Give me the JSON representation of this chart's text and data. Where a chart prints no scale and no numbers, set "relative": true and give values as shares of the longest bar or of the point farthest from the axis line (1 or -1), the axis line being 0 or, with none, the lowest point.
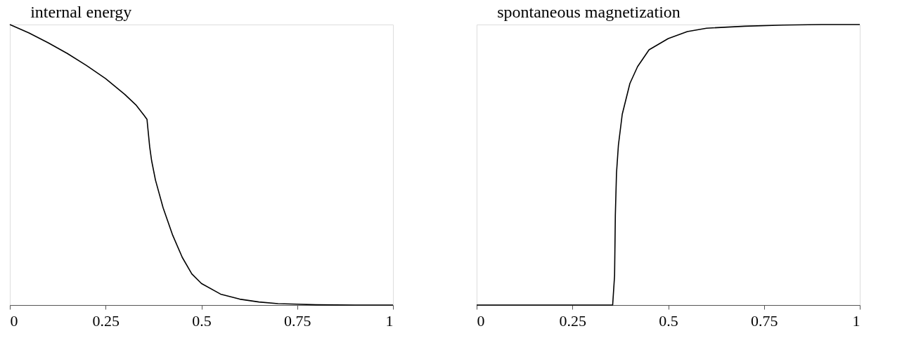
{
  "chart_data": [
    {
      "type": "line",
      "title": "internal energy",
      "relative": true,
      "tick_labels": "x",
      "xlim": [
        0,
        1
      ],
      "xticks": [
        0,
        0.25,
        0.5,
        0.75,
        1
      ],
      "x": [
        0,
        0.05,
        0.1,
        0.15,
        0.2,
        0.25,
        0.3,
        0.33,
        0.35,
        0.358,
        0.36,
        0.365,
        0.37,
        0.38,
        0.4,
        0.425,
        0.45,
        0.475,
        0.5,
        0.55,
        0.6,
        0.65,
        0.7,
        0.75,
        0.8,
        0.9,
        1
      ],
      "series": [
        {
          "color": "#000000",
          "values": [
            1,
            0.97,
            0.935,
            0.897,
            0.854,
            0.807,
            0.751,
            0.712,
            0.677,
            0.662,
            0.633,
            0.564,
            0.515,
            0.446,
            0.347,
            0.249,
            0.17,
            0.111,
            0.077,
            0.039,
            0.021,
            0.011,
            0.005,
            0.003,
            0.001,
            0,
            0
          ]
        }
      ]
    },
    {
      "type": "line",
      "title": "spontaneous magnetization",
      "relative": true,
      "tick_labels": "x",
      "xlim": [
        0,
        1
      ],
      "xticks": [
        0,
        0.25,
        0.5,
        0.75,
        1
      ],
      "x": [
        0,
        0.1,
        0.2,
        0.3,
        0.355,
        0.36,
        0.362,
        0.365,
        0.37,
        0.38,
        0.4,
        0.42,
        0.45,
        0.5,
        0.55,
        0.6,
        0.7,
        0.8,
        0.9,
        1
      ],
      "series": [
        {
          "color": "#000000",
          "values": [
            0,
            0,
            0,
            0,
            0,
            0.105,
            0.32,
            0.47,
            0.57,
            0.68,
            0.79,
            0.85,
            0.91,
            0.95,
            0.975,
            0.987,
            0.994,
            0.998,
            1,
            1
          ]
        }
      ]
    }
  ]
}
